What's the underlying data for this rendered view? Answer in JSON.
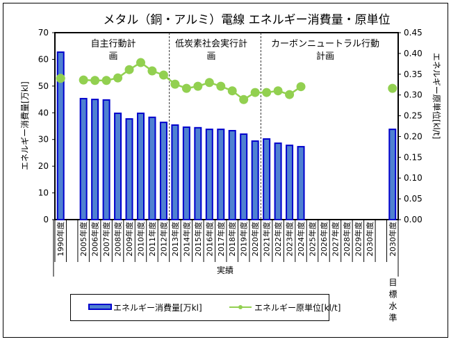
{
  "chart_data": {
    "type": "bar+line",
    "title": "メタル（銅・アルミ）電線 エネルギー消費量・原単位",
    "ylabel_left": "エネルギー消費量[万kl]",
    "ylabel_right": "エネルギー原単位[kl/t]",
    "ylim_left": [
      0,
      70
    ],
    "ylim_right": [
      0,
      0.45
    ],
    "yticks_left": [
      "0",
      "10",
      "20",
      "30",
      "40",
      "50",
      "60",
      "70"
    ],
    "yticks_right": [
      "0.00",
      "0.05",
      "0.10",
      "0.15",
      "0.20",
      "0.25",
      "0.30",
      "0.35",
      "0.40",
      "0.45"
    ],
    "categories": [
      "1990年度",
      "",
      "2005年度",
      "2006年度",
      "2007年度",
      "2008年度",
      "2009年度",
      "2010年度",
      "2011年度",
      "2012年度",
      "2013年度",
      "2014年度",
      "2015年度",
      "2016年度",
      "2017年度",
      "2018年度",
      "2019年度",
      "2020年度",
      "2021年度",
      "2022年度",
      "2023年度",
      "2024年度",
      "2025年度",
      "2026年度",
      "2027年度",
      "2028年度",
      "2029年度",
      "2030年度",
      "",
      "2030年度"
    ],
    "series": [
      {
        "name": "エネルギー消費量[万kl]",
        "type": "bar",
        "axis": "left",
        "color": "#4f81d1",
        "edge": "#0000cc",
        "values": [
          62.7,
          null,
          45.3,
          45.0,
          44.8,
          39.8,
          37.7,
          39.8,
          38.3,
          36.4,
          35.4,
          34.6,
          34.4,
          33.8,
          33.8,
          33.3,
          32.0,
          29.4,
          30.2,
          28.6,
          27.8,
          27.3,
          null,
          null,
          null,
          null,
          null,
          null,
          null,
          33.8
        ]
      },
      {
        "name": "エネルギー原単位[kl/t]",
        "type": "line",
        "axis": "right",
        "color": "#92d050",
        "values": [
          0.34,
          null,
          0.336,
          0.335,
          0.335,
          0.341,
          0.361,
          0.378,
          0.358,
          0.348,
          0.326,
          0.316,
          0.321,
          0.33,
          0.321,
          0.31,
          0.289,
          0.306,
          0.306,
          0.31,
          0.301,
          0.32,
          null,
          null,
          null,
          null,
          null,
          null,
          null,
          0.316
        ]
      }
    ],
    "period_labels": [
      {
        "line1": "自主行動計",
        "line2": "画"
      },
      {
        "line1": "低炭素社会実行計",
        "line2": "画"
      },
      {
        "line1": "カーボンニュートラル行動",
        "line2": "計画"
      }
    ],
    "group_labels": {
      "actual": "実績",
      "target": "目標水準"
    },
    "legend_position": "bottom",
    "grid": false
  }
}
